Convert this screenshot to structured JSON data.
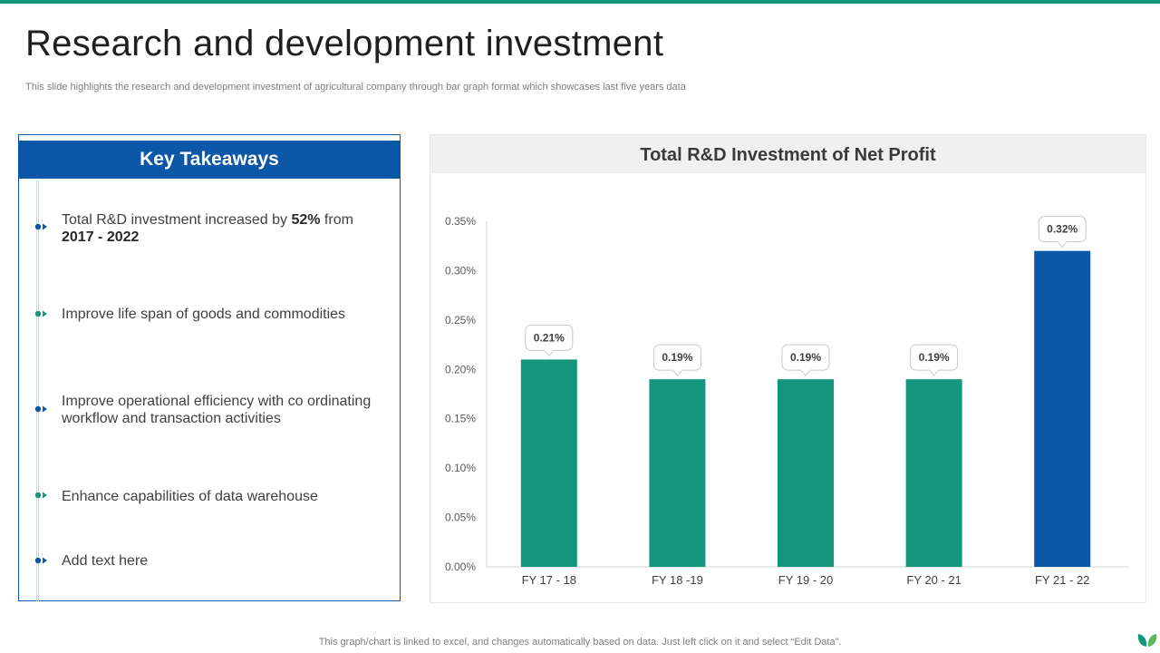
{
  "slide": {
    "title": "Research and development investment",
    "subtitle": "This slide highlights the research and development investment of agricultural company through bar graph format which showcases last five years data",
    "footer_note": "This graph/chart is linked to excel,  and changes automatically based on data. Just left click on it and select “Edit Data”."
  },
  "takeaways": {
    "header": "Key Takeaways",
    "items": [
      {
        "prefix": "Total R&D investment  increased by ",
        "bold1": "52%",
        "middle": " from ",
        "bold2": "2017 - 2022",
        "bullet_color": "#0d57a8"
      },
      {
        "text": "Improve life span of goods and commodities",
        "bullet_color": "#14967c"
      },
      {
        "text": "Improve operational efficiency with co ordinating workflow and transaction activities",
        "bullet_color": "#0d57a8"
      },
      {
        "text": "Enhance capabilities of data warehouse",
        "bullet_color": "#14967c"
      },
      {
        "text": "Add text here",
        "bullet_color": "#0d57a8"
      }
    ]
  },
  "colors": {
    "accent_green": "#14967c",
    "accent_blue": "#0d57a8"
  },
  "icons": {
    "bullet": "arrow-bullet-icon",
    "logo": "leaf-logo-icon"
  },
  "chart_data": {
    "type": "bar",
    "title": "Total R&D Investment of Net Profit",
    "categories": [
      "FY 17 - 18",
      "FY 18 -19",
      "FY 19 - 20",
      "FY 20 - 21",
      "FY 21 - 22"
    ],
    "values": [
      0.21,
      0.19,
      0.19,
      0.19,
      0.32
    ],
    "data_labels": [
      "0.21%",
      "0.19%",
      "0.19%",
      "0.19%",
      "0.32%"
    ],
    "bar_colors": [
      "#14967c",
      "#14967c",
      "#14967c",
      "#14967c",
      "#0d57a8"
    ],
    "y_ticks": [
      "0.00%",
      "0.05%",
      "0.10%",
      "0.15%",
      "0.20%",
      "0.25%",
      "0.30%",
      "0.35%"
    ],
    "ylim": [
      0,
      0.35
    ],
    "y_unit": "%",
    "xlabel": "",
    "ylabel": "",
    "grid": false,
    "legend": "none"
  }
}
